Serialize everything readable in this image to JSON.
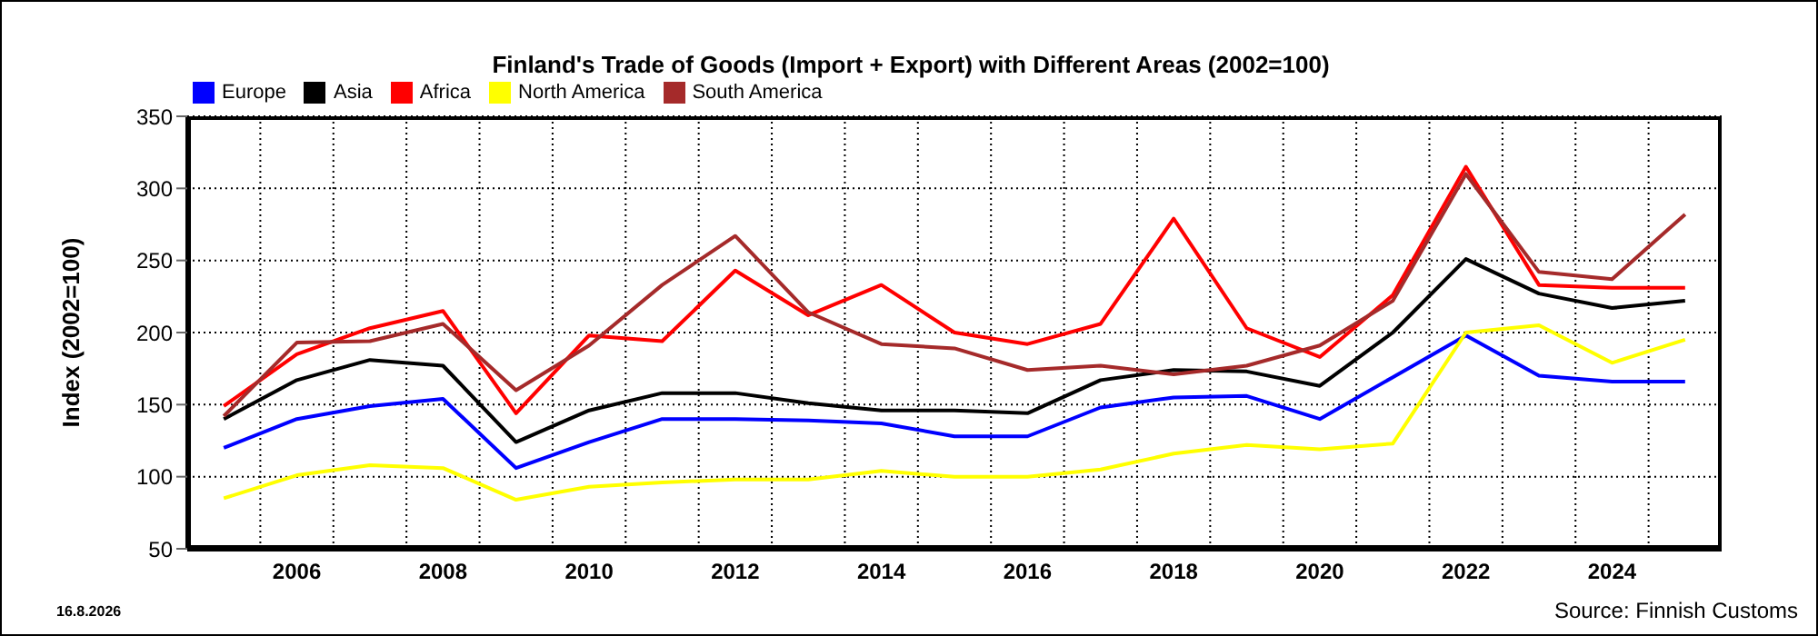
{
  "chart_data": {
    "type": "line",
    "title": "Finland's Trade of Goods (Import + Export) with Different Areas (2002=100)",
    "ylabel": "Index (2002=100)",
    "categories": [
      null,
      "2006",
      null,
      "2008",
      null,
      "2010",
      null,
      "2012",
      null,
      "2014",
      null,
      "2016",
      null,
      "2018",
      null,
      "2020",
      null,
      "2022",
      null,
      "2024",
      null
    ],
    "series": [
      {
        "name": "Europe",
        "color": "#0000ff",
        "values": [
          120,
          140,
          149,
          154,
          106,
          124,
          140,
          140,
          139,
          137,
          128,
          128,
          148,
          155,
          156,
          140,
          169,
          198,
          170,
          166,
          166
        ]
      },
      {
        "name": "Asia",
        "color": "#000000",
        "values": [
          140,
          167,
          181,
          177,
          124,
          146,
          158,
          158,
          151,
          146,
          146,
          144,
          167,
          174,
          173,
          163,
          200,
          251,
          227,
          217,
          222
        ]
      },
      {
        "name": "Africa",
        "color": "#ff0000",
        "values": [
          149,
          185,
          203,
          215,
          144,
          198,
          194,
          243,
          212,
          233,
          200,
          192,
          206,
          279,
          203,
          183,
          226,
          315,
          233,
          231,
          231
        ]
      },
      {
        "name": "North America",
        "color": "#ffff00",
        "values": [
          85,
          101,
          108,
          106,
          84,
          93,
          96,
          98,
          98,
          104,
          100,
          100,
          105,
          116,
          122,
          119,
          123,
          200,
          205,
          179,
          195
        ]
      },
      {
        "name": "South America",
        "color": "#a52a2a",
        "values": [
          142,
          193,
          194,
          206,
          160,
          191,
          233,
          267,
          214,
          192,
          189,
          174,
          177,
          171,
          177,
          191,
          222,
          310,
          242,
          237,
          282
        ]
      }
    ],
    "ylim": [
      50,
      350
    ],
    "yticks": [
      50,
      100,
      150,
      200,
      250,
      300,
      350
    ],
    "grid": true,
    "legend": "top left",
    "marker": "none",
    "line_style": "solid",
    "annotations": [
      "16.8.2026",
      "Source: Finnish Customs"
    ]
  }
}
